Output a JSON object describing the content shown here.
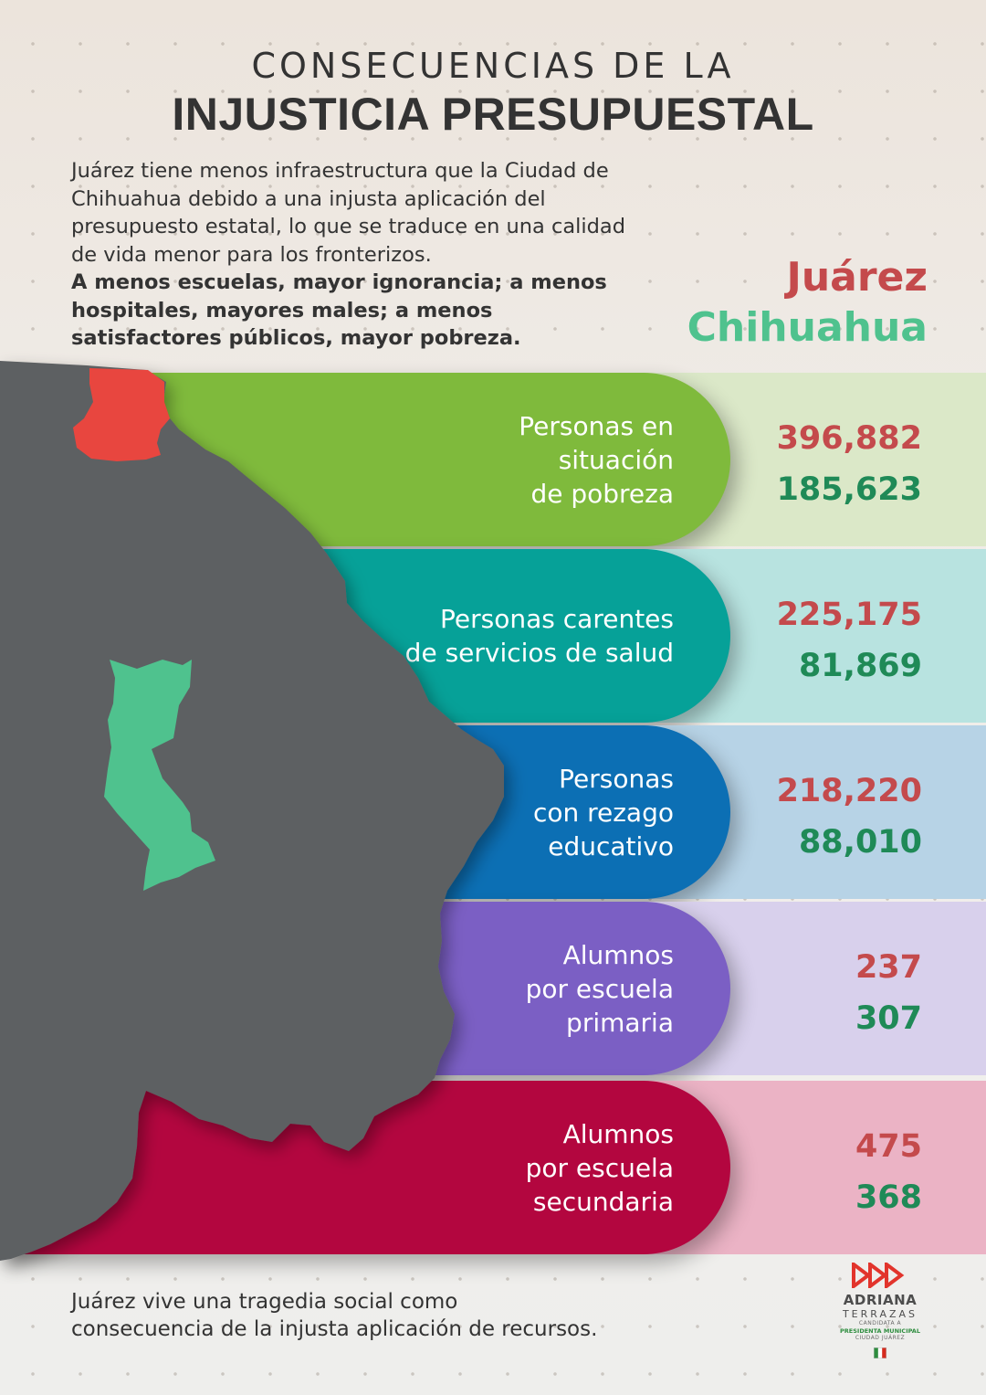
{
  "title": {
    "line1": "CONSECUENCIAS DE LA",
    "line2": "INJUSTICIA PRESUPUESTAL"
  },
  "intro": {
    "text": "Juárez tiene menos infraestructura que la Ciudad de Chihuahua debido a una injusta aplicación del presupuesto estatal, lo  que se traduce en una calidad de vida menor para los fronterizos.",
    "bold": "A menos escuelas, mayor ignorancia; a menos hospitales, mayores males; a menos satisfactores públicos, mayor pobreza."
  },
  "legend": {
    "juarez": "Juárez",
    "chihuahua": "Chihuahua"
  },
  "colors": {
    "juarez": "#c44a4c",
    "chihuahua": "#1f8a57",
    "map": "#5d6062",
    "juarez_region": "#e8463f",
    "chihuahua_region": "#4fc28e"
  },
  "rows": [
    {
      "label": "Personas en\nsituación\nde pobreza",
      "juarez": "396,882",
      "chihuahua": "185,623",
      "pill_color": "#7fba3c",
      "band_color": "#dbe8c8"
    },
    {
      "label": "Personas carentes\nde servicios de salud",
      "juarez": "225,175",
      "chihuahua": "81,869",
      "pill_color": "#06a198",
      "band_color": "#b8e3e0"
    },
    {
      "label": "Personas\ncon rezago\neducativo",
      "juarez": "218,220",
      "chihuahua": "88,010",
      "pill_color": "#0c6fb4",
      "band_color": "#b7d3e6"
    },
    {
      "label": "Alumnos\npor escuela\nprimaria",
      "juarez": "237",
      "chihuahua": "307",
      "pill_color": "#7b5fc4",
      "band_color": "#d8d0ec"
    },
    {
      "label": "Alumnos\npor escuela\nsecundaria",
      "juarez": "475",
      "chihuahua": "368",
      "pill_color": "#b3063f",
      "band_color": "#ebb3c5"
    }
  ],
  "footer": "Juárez vive una tragedia social como\nconsecuencia de la injusta aplicación de recursos.",
  "logo": {
    "icon": "triple-triangle-logo",
    "name": "ADRIANA",
    "surname": "TERRAZAS",
    "line1": "CANDIDATA A",
    "line2": "PRESIDENTA MUNICIPAL",
    "line3": "CIUDAD JUÁREZ",
    "party_icon": "pri-icon"
  }
}
